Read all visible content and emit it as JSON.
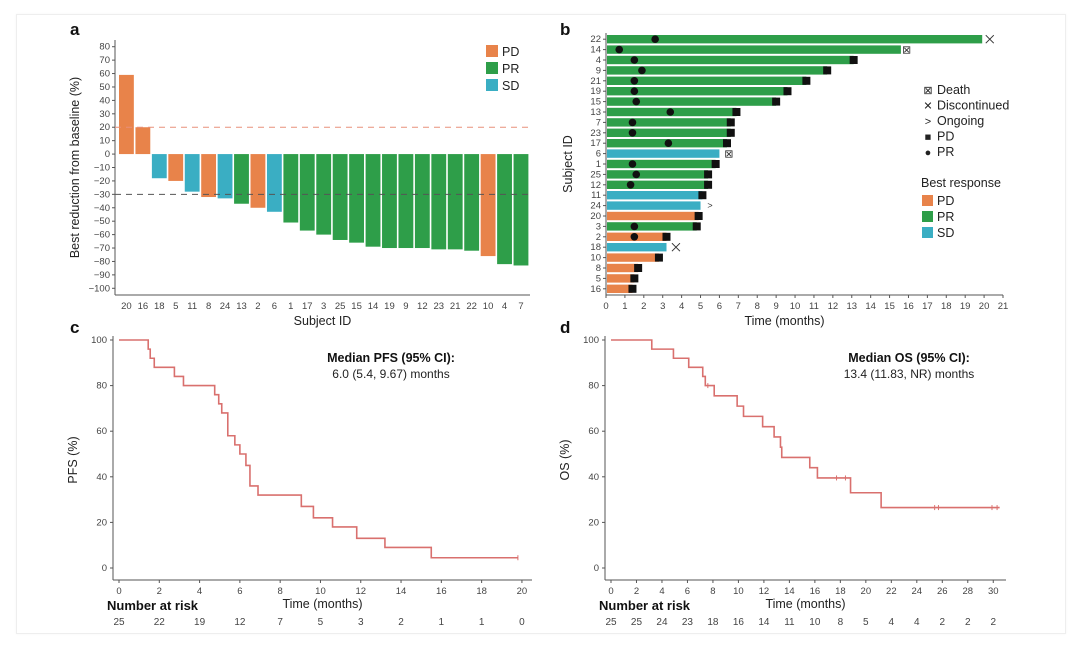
{
  "colors": {
    "PD": "#e8834a",
    "PR": "#2e9e49",
    "SD": "#3aaec3",
    "km": "#d9706e",
    "axis": "#555555"
  },
  "chart_data": [
    {
      "panel": "a",
      "type": "bar",
      "title": "",
      "xlabel": "Subject ID",
      "ylabel": "Best reduction from baseline (%)",
      "ylim": [
        -105,
        85
      ],
      "yticks": [
        80,
        70,
        60,
        50,
        40,
        30,
        20,
        10,
        0,
        -10,
        -20,
        -30,
        -40,
        -50,
        -60,
        -70,
        -80,
        -90,
        -100
      ],
      "reference_lines": [
        {
          "y": 20,
          "color": "#e8907a",
          "style": "dashed"
        },
        {
          "y": -30,
          "color": "#555555",
          "style": "dashed"
        }
      ],
      "categories": [
        "20",
        "16",
        "18",
        "5",
        "11",
        "8",
        "24",
        "13",
        "2",
        "6",
        "1",
        "17",
        "3",
        "25",
        "15",
        "14",
        "19",
        "9",
        "12",
        "23",
        "21",
        "22",
        "10",
        "4",
        "7"
      ],
      "values": [
        59,
        20,
        -18,
        -20,
        -28,
        -32,
        -33,
        -37,
        -40,
        -43,
        -51,
        -57,
        -60,
        -64,
        -66,
        -69,
        -70,
        -70,
        -70,
        -71,
        -71,
        -72,
        -76,
        -82,
        -83
      ],
      "response": [
        "PD",
        "PD",
        "SD",
        "PD",
        "SD",
        "PD",
        "SD",
        "PR",
        "PD",
        "SD",
        "PR",
        "PR",
        "PR",
        "PR",
        "PR",
        "PR",
        "PR",
        "PR",
        "PR",
        "PR",
        "PR",
        "PR",
        "PD",
        "PR",
        "PR"
      ],
      "legend": [
        "PD",
        "PR",
        "SD"
      ],
      "legend_position": "top-right"
    },
    {
      "panel": "b",
      "type": "bar",
      "orientation": "horizontal",
      "title": "",
      "xlabel": "Time (months)",
      "ylabel": "Subject ID",
      "xlim": [
        0,
        21
      ],
      "xticks": [
        0,
        1,
        2,
        3,
        4,
        5,
        6,
        7,
        8,
        9,
        10,
        11,
        12,
        13,
        14,
        15,
        16,
        17,
        18,
        19,
        20,
        21
      ],
      "subjects": [
        {
          "id": "22",
          "duration": 19.9,
          "response": "PR",
          "pr_time": 2.6,
          "pd_time": null,
          "end_marker": "Discontinued",
          "end_time": 20.3
        },
        {
          "id": "14",
          "duration": 15.6,
          "response": "PR",
          "pr_time": 0.7,
          "pd_time": null,
          "end_marker": "Death",
          "end_time": 15.9
        },
        {
          "id": "4",
          "duration": 13.1,
          "response": "PR",
          "pr_time": 1.5,
          "pd_time": 13.1,
          "end_marker": null
        },
        {
          "id": "9",
          "duration": 11.7,
          "response": "PR",
          "pr_time": 1.9,
          "pd_time": 11.7,
          "end_marker": null
        },
        {
          "id": "21",
          "duration": 10.6,
          "response": "PR",
          "pr_time": 1.5,
          "pd_time": 10.6,
          "end_marker": null
        },
        {
          "id": "19",
          "duration": 9.6,
          "response": "PR",
          "pr_time": 1.5,
          "pd_time": 9.6,
          "end_marker": null
        },
        {
          "id": "15",
          "duration": 9.0,
          "response": "PR",
          "pr_time": 1.6,
          "pd_time": 9.0,
          "end_marker": null
        },
        {
          "id": "13",
          "duration": 6.9,
          "response": "PR",
          "pr_time": 3.4,
          "pd_time": 6.9,
          "end_marker": null
        },
        {
          "id": "7",
          "duration": 6.6,
          "response": "PR",
          "pr_time": 1.4,
          "pd_time": 6.6,
          "end_marker": null
        },
        {
          "id": "23",
          "duration": 6.6,
          "response": "PR",
          "pr_time": 1.4,
          "pd_time": 6.6,
          "end_marker": null
        },
        {
          "id": "17",
          "duration": 6.4,
          "response": "PR",
          "pr_time": 3.3,
          "pd_time": 6.4,
          "end_marker": null
        },
        {
          "id": "6",
          "duration": 6.0,
          "response": "SD",
          "pr_time": null,
          "pd_time": null,
          "end_marker": "Death",
          "end_time": 6.5
        },
        {
          "id": "1",
          "duration": 5.8,
          "response": "PR",
          "pr_time": 1.4,
          "pd_time": 5.8,
          "end_marker": null
        },
        {
          "id": "25",
          "duration": 5.4,
          "response": "PR",
          "pr_time": 1.6,
          "pd_time": 5.4,
          "end_marker": null
        },
        {
          "id": "12",
          "duration": 5.4,
          "response": "PR",
          "pr_time": 1.3,
          "pd_time": 5.4,
          "end_marker": null
        },
        {
          "id": "11",
          "duration": 5.1,
          "response": "SD",
          "pr_time": null,
          "pd_time": 5.1,
          "end_marker": null
        },
        {
          "id": "24",
          "duration": 5.0,
          "response": "SD",
          "pr_time": null,
          "pd_time": null,
          "end_marker": "Ongoing",
          "end_time": 5.5
        },
        {
          "id": "20",
          "duration": 4.9,
          "response": "PD",
          "pr_time": null,
          "pd_time": 4.9,
          "end_marker": null
        },
        {
          "id": "3",
          "duration": 4.8,
          "response": "PR",
          "pr_time": 1.5,
          "pd_time": 4.8,
          "end_marker": null
        },
        {
          "id": "2",
          "duration": 3.2,
          "response": "PD",
          "pr_time": 1.5,
          "pd_time": 3.2,
          "end_marker": null
        },
        {
          "id": "18",
          "duration": 3.2,
          "response": "SD",
          "pr_time": null,
          "pd_time": null,
          "end_marker": "Discontinued",
          "end_time": 3.7
        },
        {
          "id": "10",
          "duration": 2.8,
          "response": "PD",
          "pr_time": null,
          "pd_time": 2.8,
          "end_marker": null
        },
        {
          "id": "8",
          "duration": 1.7,
          "response": "PD",
          "pr_time": null,
          "pd_time": 1.7,
          "end_marker": null
        },
        {
          "id": "5",
          "duration": 1.5,
          "response": "PD",
          "pr_time": null,
          "pd_time": 1.5,
          "end_marker": null
        },
        {
          "id": "16",
          "duration": 1.4,
          "response": "PD",
          "pr_time": null,
          "pd_time": 1.4,
          "end_marker": null
        }
      ],
      "legend_symbols": [
        {
          "symbol": "death-icon",
          "glyph": "⊠",
          "label": "Death"
        },
        {
          "symbol": "discontinued-icon",
          "glyph": "✕",
          "label": "Discontinued"
        },
        {
          "symbol": "ongoing-icon",
          "glyph": ">",
          "label": "Ongoing"
        },
        {
          "symbol": "pd-square-icon",
          "glyph": "■",
          "label": "PD"
        },
        {
          "symbol": "pr-dot-icon",
          "glyph": "●",
          "label": "PR"
        }
      ],
      "legend_title": "Best response",
      "legend_response": [
        "PD",
        "PR",
        "SD"
      ],
      "legend_position": "right"
    },
    {
      "panel": "c",
      "type": "line",
      "title": "",
      "xlabel": "Time (months)",
      "ylabel": "PFS (%)",
      "xlim": [
        0,
        20.5
      ],
      "ylim": [
        0,
        100
      ],
      "xticks": [
        0,
        2,
        4,
        6,
        8,
        10,
        12,
        14,
        16,
        18,
        20
      ],
      "yticks": [
        0,
        20,
        40,
        60,
        80,
        100
      ],
      "annotation_title": "Median PFS (95% CI):",
      "annotation_value": "6.0 (5.4, 9.67) months",
      "steps": [
        [
          0,
          100
        ],
        [
          1.45,
          96
        ],
        [
          1.55,
          92
        ],
        [
          1.75,
          88
        ],
        [
          2.75,
          84
        ],
        [
          3.2,
          80
        ],
        [
          4.75,
          76
        ],
        [
          4.95,
          72
        ],
        [
          5.1,
          68
        ],
        [
          5.4,
          58
        ],
        [
          5.75,
          54
        ],
        [
          6.0,
          50
        ],
        [
          6.3,
          45
        ],
        [
          6.5,
          36
        ],
        [
          6.9,
          32
        ],
        [
          9.05,
          27
        ],
        [
          9.65,
          22
        ],
        [
          10.6,
          18
        ],
        [
          11.8,
          13
        ],
        [
          13.2,
          9
        ],
        [
          15.5,
          4.5
        ],
        [
          19.8,
          4.5
        ]
      ],
      "censored": [
        [
          19.8,
          4.5
        ]
      ],
      "risk_label": "Number at risk",
      "risk_times": [
        0,
        2,
        4,
        6,
        8,
        10,
        12,
        14,
        16,
        18,
        20
      ],
      "risk_values": [
        25,
        22,
        19,
        12,
        7,
        5,
        3,
        2,
        1,
        1,
        0
      ]
    },
    {
      "panel": "d",
      "type": "line",
      "title": "",
      "xlabel": "Time (months)",
      "ylabel": "OS (%)",
      "xlim": [
        0,
        31
      ],
      "ylim": [
        0,
        100
      ],
      "xticks": [
        0,
        2,
        4,
        6,
        8,
        10,
        12,
        14,
        16,
        18,
        20,
        22,
        24,
        26,
        28,
        30
      ],
      "yticks": [
        0,
        20,
        40,
        60,
        80,
        100
      ],
      "annotation_title": "Median OS (95% CI):",
      "annotation_value": "13.4 (11.83, NR) months",
      "steps": [
        [
          0,
          100
        ],
        [
          3.2,
          96
        ],
        [
          4.9,
          92
        ],
        [
          6.1,
          88
        ],
        [
          7.2,
          84
        ],
        [
          7.4,
          80
        ],
        [
          8.1,
          75.5
        ],
        [
          9.9,
          71
        ],
        [
          10.4,
          66.5
        ],
        [
          11.9,
          62
        ],
        [
          12.8,
          57.5
        ],
        [
          13.3,
          53
        ],
        [
          13.4,
          48.5
        ],
        [
          15.6,
          44
        ],
        [
          16.2,
          39.5
        ],
        [
          18.8,
          33
        ],
        [
          21.2,
          26.5
        ],
        [
          30.5,
          26.5
        ]
      ],
      "censored": [
        [
          7.6,
          80
        ],
        [
          17.7,
          39.5
        ],
        [
          18.4,
          39.5
        ],
        [
          25.4,
          26.5
        ],
        [
          25.7,
          26.5
        ],
        [
          29.9,
          26.5
        ],
        [
          30.3,
          26.5
        ]
      ],
      "risk_label": "Number at risk",
      "risk_times": [
        0,
        2,
        4,
        6,
        8,
        10,
        12,
        14,
        16,
        18,
        20,
        22,
        24,
        26,
        28,
        30
      ],
      "risk_values": [
        25,
        25,
        24,
        23,
        18,
        16,
        14,
        11,
        10,
        8,
        5,
        4,
        4,
        2,
        2,
        2
      ]
    }
  ],
  "panels": {
    "a": "a",
    "b": "b",
    "c": "c",
    "d": "d"
  }
}
